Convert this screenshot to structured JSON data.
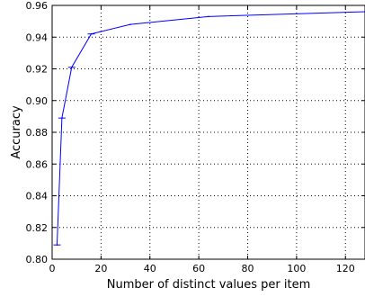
{
  "chart_data": {
    "type": "line",
    "title": "",
    "xlabel": "Number of distinct values per item",
    "ylabel": "Accuracy",
    "xlim": [
      0,
      128
    ],
    "ylim": [
      0.8,
      0.96
    ],
    "grid": true,
    "grid_style": "dotted",
    "x_ticks": [
      0,
      20,
      40,
      60,
      80,
      100,
      120
    ],
    "x_tick_labels": [
      "0",
      "20",
      "40",
      "60",
      "80",
      "100",
      "120"
    ],
    "y_ticks": [
      0.8,
      0.82,
      0.84,
      0.86,
      0.88,
      0.9,
      0.92,
      0.94,
      0.96
    ],
    "y_tick_labels": [
      "0.80",
      "0.82",
      "0.84",
      "0.86",
      "0.88",
      "0.90",
      "0.92",
      "0.94",
      "0.96"
    ],
    "series": [
      {
        "color": "#0000ff",
        "x": [
          2,
          4,
          8,
          16,
          32,
          64,
          128
        ],
        "y": [
          0.809,
          0.889,
          0.921,
          0.942,
          0.948,
          0.953,
          0.956
        ],
        "error_bar_x": [
          2,
          4,
          8,
          16
        ]
      }
    ]
  }
}
